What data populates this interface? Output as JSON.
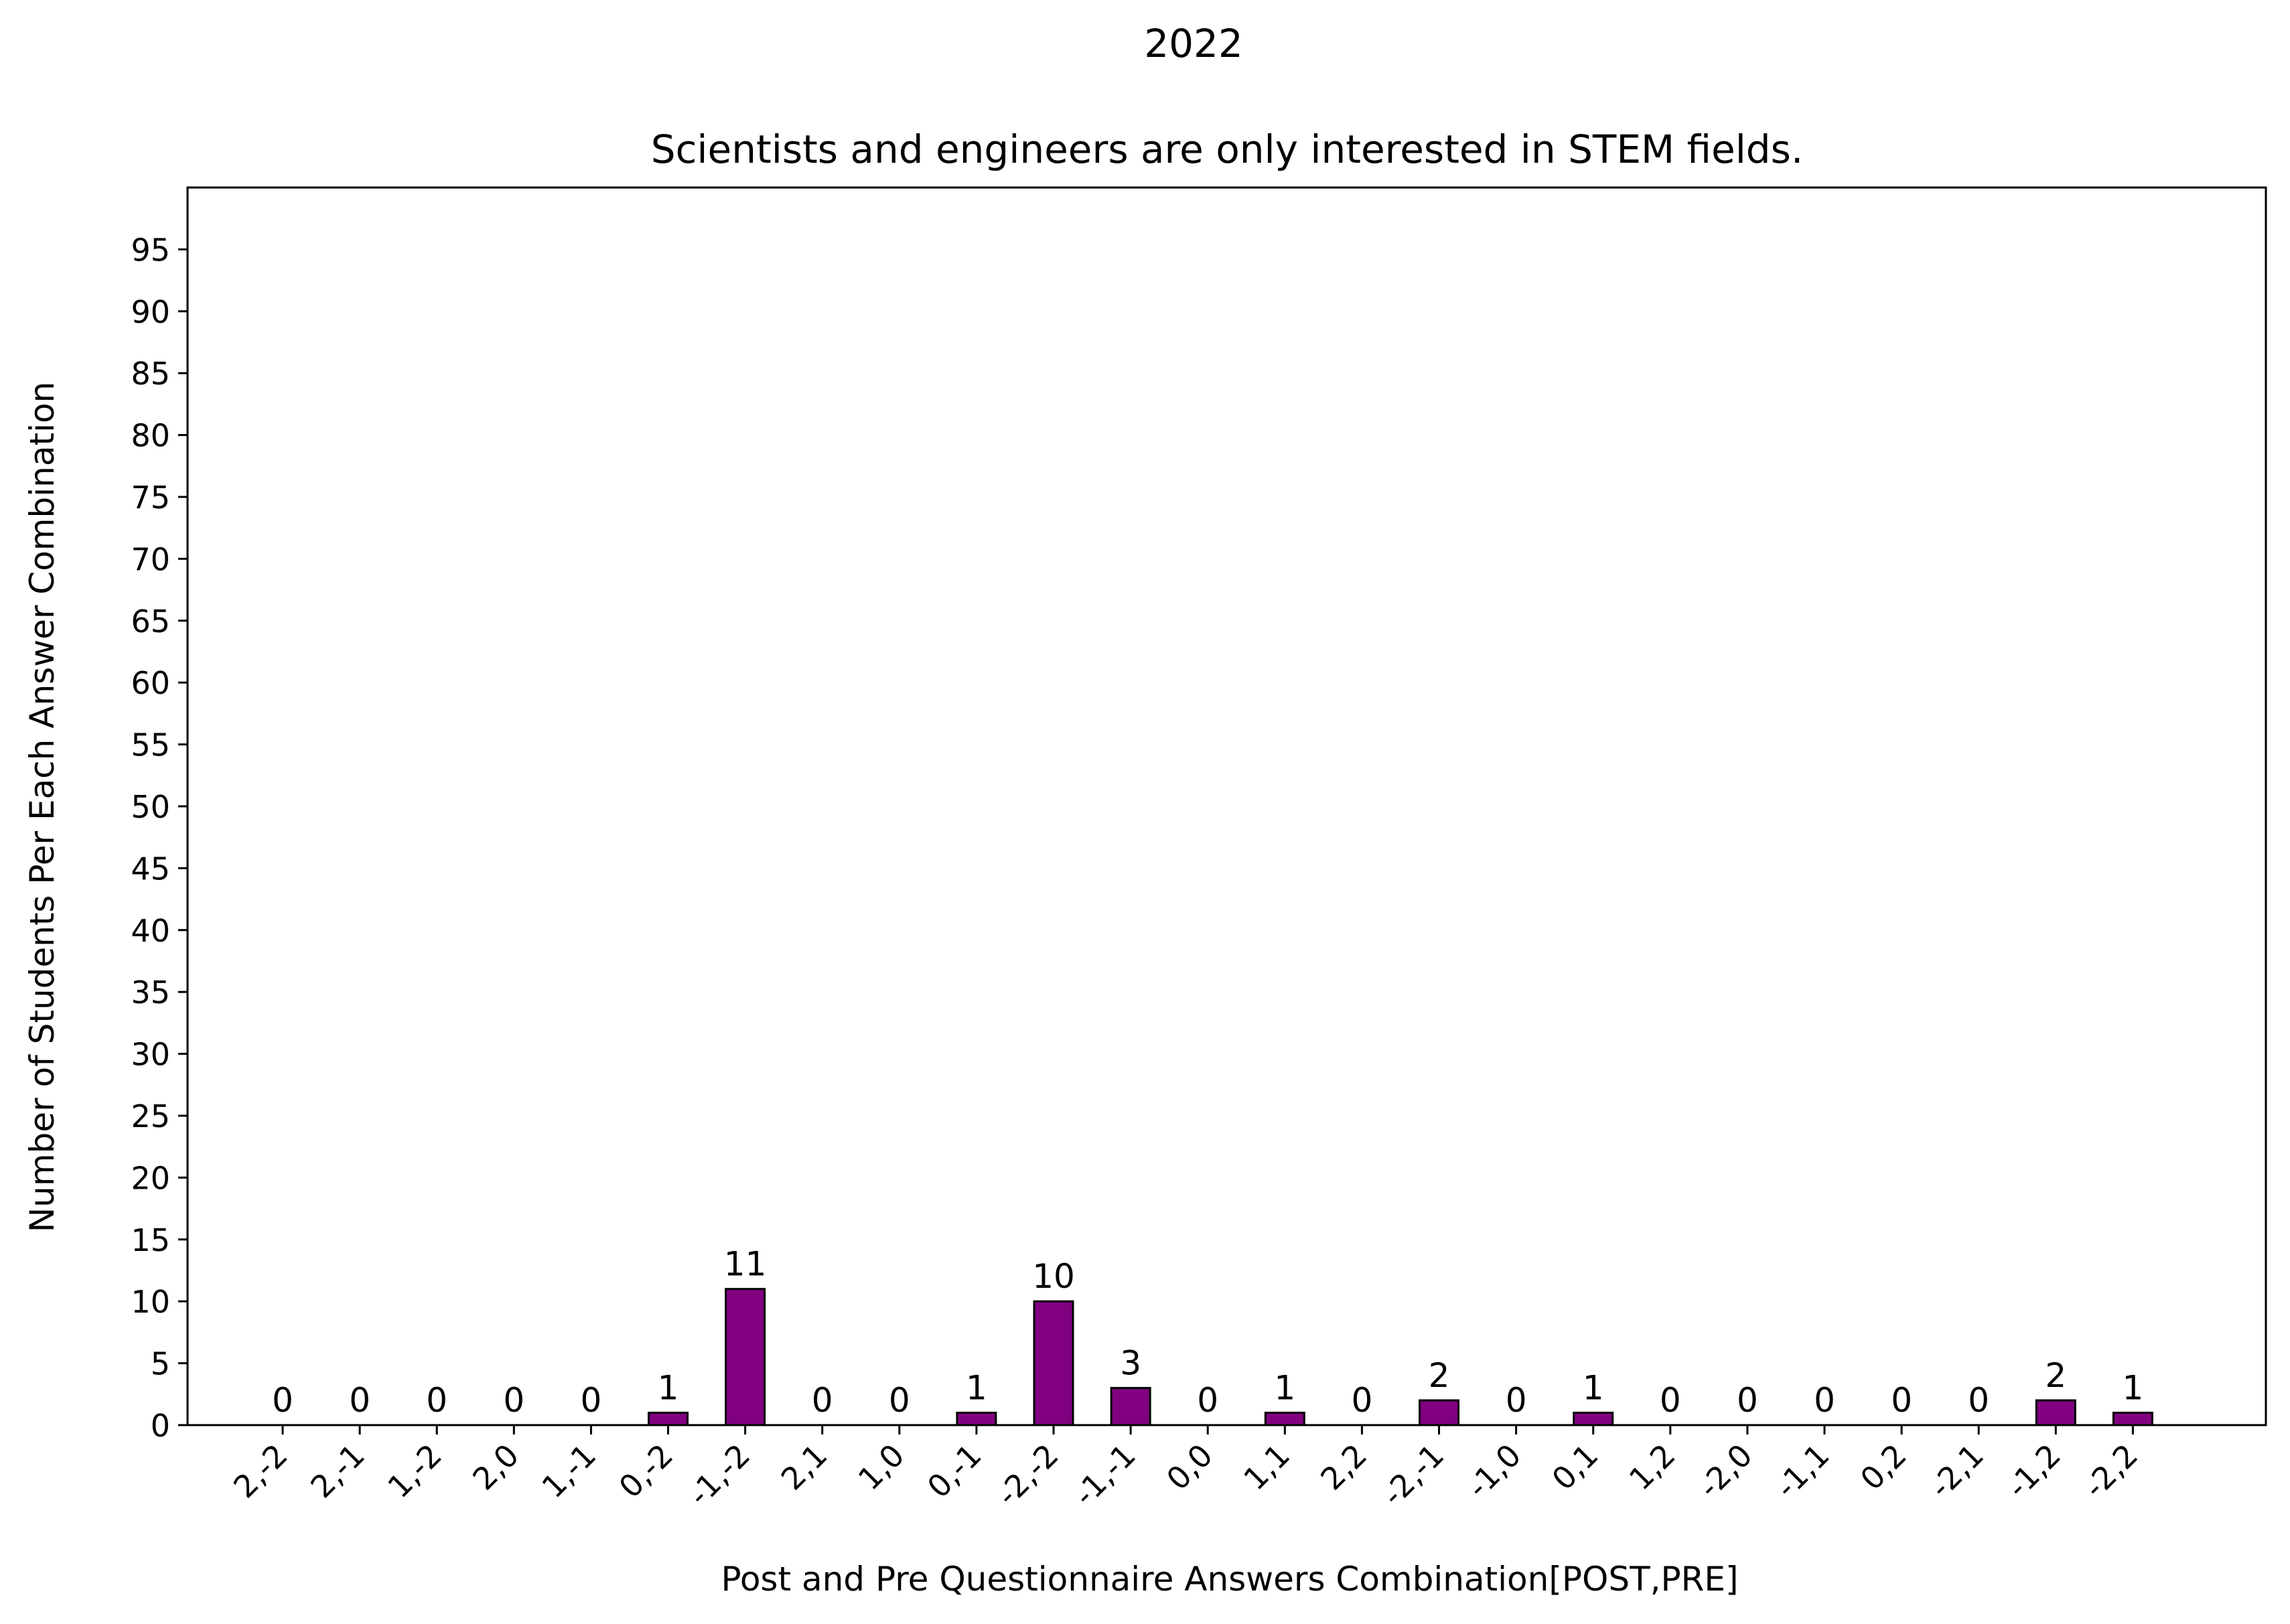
{
  "chart_data": {
    "type": "bar",
    "suptitle": "2022",
    "title": "Scientists and engineers are only interested in STEM fields.",
    "xlabel": "Post and Pre Questionnaire Answers Combination[POST,PRE]",
    "ylabel": "Number of Students Per Each Answer Combination",
    "categories": [
      "2,-2",
      "2,-1",
      "1,-2",
      "2,0",
      "1,-1",
      "0,-2",
      "-1,-2",
      "2,1",
      "1,0",
      "0,-1",
      "-2,-2",
      "-1,-1",
      "0,0",
      "1,1",
      "2,2",
      "-2,-1",
      "-1,0",
      "0,1",
      "1,2",
      "-2,0",
      "-1,1",
      "0,2",
      "-2,1",
      "-1,2",
      "-2,2"
    ],
    "values": [
      0,
      0,
      0,
      0,
      0,
      1,
      11,
      0,
      0,
      1,
      10,
      3,
      0,
      1,
      0,
      2,
      0,
      1,
      0,
      0,
      0,
      0,
      0,
      2,
      1
    ],
    "data_labels": [
      "0",
      "0",
      "0",
      "0",
      "0",
      "1",
      "11",
      "0",
      "0",
      "1",
      "10",
      "3",
      "0",
      "1",
      "0",
      "2",
      "0",
      "1",
      "0",
      "0",
      "0",
      "0",
      "0",
      "2",
      "1"
    ],
    "y_ticks": [
      "0",
      "5",
      "10",
      "15",
      "20",
      "25",
      "30",
      "35",
      "40",
      "45",
      "50",
      "55",
      "60",
      "65",
      "70",
      "75",
      "80",
      "85",
      "90",
      "95"
    ],
    "ylim": [
      0,
      100
    ],
    "bar_color": "#800080",
    "edge_color": "#000000",
    "grid": false,
    "legend": "none"
  }
}
